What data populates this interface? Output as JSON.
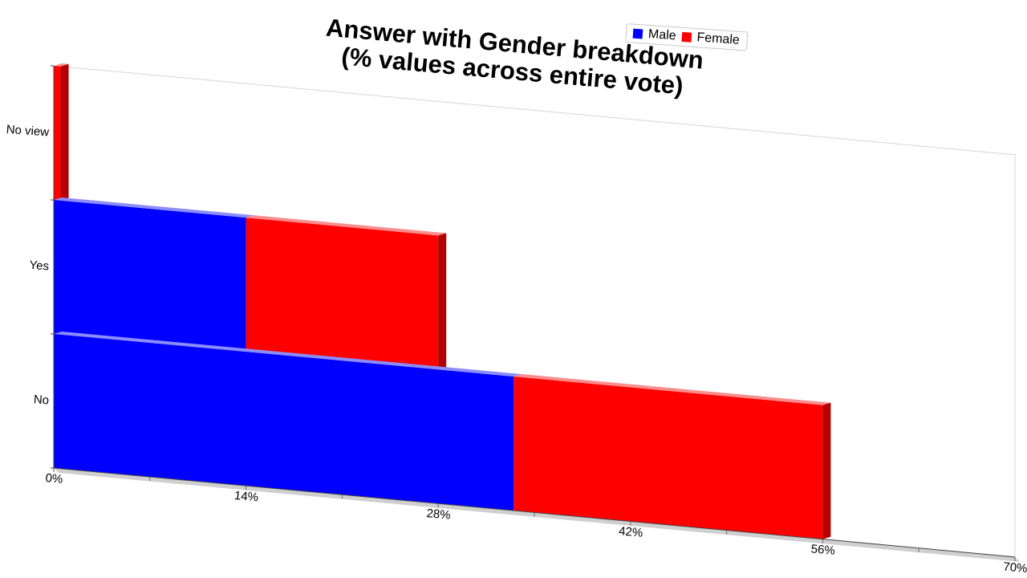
{
  "chart_data": {
    "type": "bar",
    "orientation": "horizontal",
    "stacked": true,
    "three_d": true,
    "title": "Answer with Gender breakdown\n(% values across entire vote)",
    "title_lines": [
      "Answer with Gender breakdown",
      "(% values across entire vote)"
    ],
    "categories": [
      "No view",
      "Yes",
      "No"
    ],
    "series": [
      {
        "name": "Male",
        "color": "#0000ff",
        "values": [
          0,
          14,
          33.5
        ]
      },
      {
        "name": "Female",
        "color": "#ff0000",
        "values": [
          0.5,
          14,
          22.5
        ]
      }
    ],
    "xlim": [
      0,
      70
    ],
    "x_ticks": [
      "0%",
      "14%",
      "28%",
      "42%",
      "56%",
      "70%"
    ],
    "x_tick_values": [
      0,
      14,
      28,
      42,
      56,
      70
    ],
    "legend": {
      "position": "top-right",
      "entries": [
        "Male",
        "Female"
      ]
    },
    "grid": false
  }
}
